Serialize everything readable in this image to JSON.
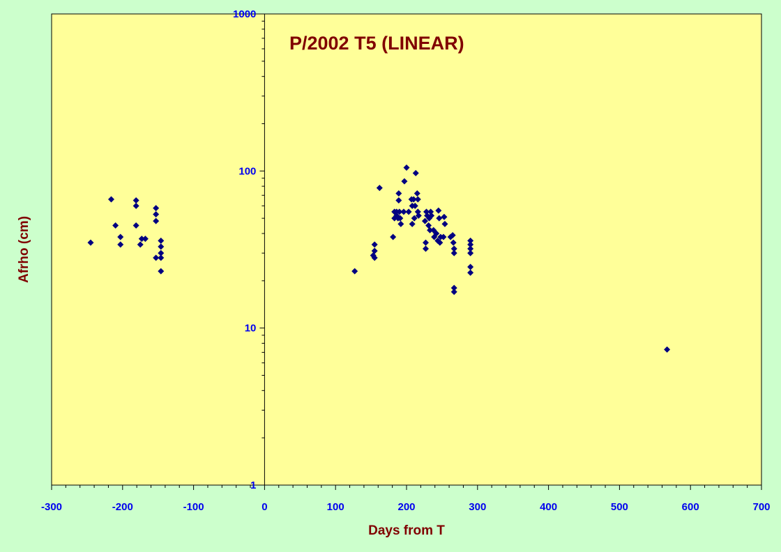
{
  "chart_data": {
    "type": "scatter",
    "title": "P/2002 T5 (LINEAR)",
    "xlabel": "Days from T",
    "ylabel": "Afrho (cm)",
    "xlim": [
      -300,
      700
    ],
    "ylim": [
      1,
      1000
    ],
    "yscale": "log",
    "x_ticks": [
      "-300",
      "-200",
      "-100",
      "0",
      "100",
      "200",
      "300",
      "400",
      "500",
      "600",
      "700"
    ],
    "y_ticks": [
      "1",
      "10",
      "100",
      "1000"
    ],
    "grid": false,
    "legend": "none",
    "colors": {
      "background": "#ccffcc",
      "plot_area": "#ffff99",
      "marker": "#000080",
      "tick_labels": "#0000ee",
      "titles": "#800000"
    },
    "points": [
      [
        -245,
        35
      ],
      [
        -216,
        66
      ],
      [
        -210,
        45
      ],
      [
        -203,
        38
      ],
      [
        -203,
        34
      ],
      [
        -181,
        65
      ],
      [
        -181,
        60
      ],
      [
        -181,
        45
      ],
      [
        -175,
        34
      ],
      [
        -173,
        37
      ],
      [
        -168,
        37
      ],
      [
        -153,
        58
      ],
      [
        -153,
        53
      ],
      [
        -153,
        48
      ],
      [
        -153,
        28
      ],
      [
        -146,
        36
      ],
      [
        -146,
        33
      ],
      [
        -146,
        30
      ],
      [
        -146,
        28
      ],
      [
        -146,
        23
      ],
      [
        127,
        23
      ],
      [
        155,
        34
      ],
      [
        155,
        31
      ],
      [
        155,
        28
      ],
      [
        162,
        78
      ],
      [
        153,
        29
      ],
      [
        181,
        38
      ],
      [
        183,
        55
      ],
      [
        183,
        50
      ],
      [
        186,
        55
      ],
      [
        186,
        52
      ],
      [
        188,
        50
      ],
      [
        189,
        72
      ],
      [
        189,
        65
      ],
      [
        190,
        55
      ],
      [
        191,
        50
      ],
      [
        192,
        46
      ],
      [
        196,
        55
      ],
      [
        197,
        86
      ],
      [
        200,
        105
      ],
      [
        203,
        55
      ],
      [
        207,
        66
      ],
      [
        208,
        60
      ],
      [
        208,
        46
      ],
      [
        210,
        66
      ],
      [
        211,
        50
      ],
      [
        212,
        60
      ],
      [
        213,
        97
      ],
      [
        215,
        72
      ],
      [
        216,
        66
      ],
      [
        216,
        55
      ],
      [
        217,
        52
      ],
      [
        226,
        48
      ],
      [
        227,
        35
      ],
      [
        227,
        32
      ],
      [
        228,
        55
      ],
      [
        229,
        52
      ],
      [
        231,
        45
      ],
      [
        232,
        50
      ],
      [
        233,
        42
      ],
      [
        234,
        55
      ],
      [
        235,
        52
      ],
      [
        238,
        42
      ],
      [
        239,
        38
      ],
      [
        242,
        40
      ],
      [
        244,
        36
      ],
      [
        245,
        56
      ],
      [
        246,
        50
      ],
      [
        247,
        35
      ],
      [
        248,
        38
      ],
      [
        252,
        38
      ],
      [
        253,
        51
      ],
      [
        254,
        46
      ],
      [
        262,
        38
      ],
      [
        265,
        39
      ],
      [
        266,
        35
      ],
      [
        267,
        18
      ],
      [
        267,
        17
      ],
      [
        267,
        32
      ],
      [
        267,
        30
      ],
      [
        290,
        36
      ],
      [
        290,
        34
      ],
      [
        290,
        32
      ],
      [
        290,
        30
      ],
      [
        290,
        24.5
      ],
      [
        290,
        22.5
      ],
      [
        567,
        7.3
      ]
    ]
  }
}
